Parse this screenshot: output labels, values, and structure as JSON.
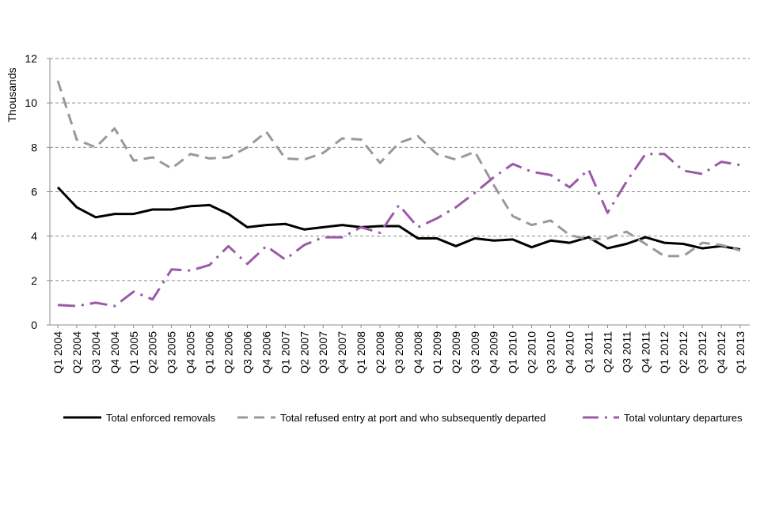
{
  "chart_data": {
    "type": "line",
    "ylabel": "Thousands",
    "xlabel": "",
    "ylim": [
      0,
      12
    ],
    "yticks": [
      0,
      2,
      4,
      6,
      8,
      10,
      12
    ],
    "grid": "horizontal dashed",
    "legend_position": "bottom",
    "categories": [
      "Q1 2004",
      "Q2 2004",
      "Q3 2004",
      "Q4 2004",
      "Q1 2005",
      "Q2 2005",
      "Q3 2005",
      "Q4 2005",
      "Q1 2006",
      "Q2 2006",
      "Q3 2006",
      "Q4 2006",
      "Q1 2007",
      "Q2 2007",
      "Q3 2007",
      "Q4 2007",
      "Q1 2008",
      "Q2 2008",
      "Q3 2008",
      "Q4 2008",
      "Q1 2009",
      "Q2 2009",
      "Q3 2009",
      "Q4 2009",
      "Q1 2010",
      "Q2 2010",
      "Q3 2010",
      "Q4 2010",
      "Q1 2011",
      "Q2 2011",
      "Q3 2011",
      "Q4 2011",
      "Q1 2012",
      "Q2 2012",
      "Q3 2012",
      "Q4 2012",
      "Q1 2013"
    ],
    "series": [
      {
        "name": "Total enforced removals",
        "color": "#000000",
        "style": "solid",
        "values": [
          6.2,
          5.3,
          4.85,
          5.0,
          5.0,
          5.2,
          5.2,
          5.35,
          5.4,
          5.0,
          4.4,
          4.5,
          4.55,
          4.3,
          4.4,
          4.5,
          4.4,
          4.45,
          4.45,
          3.9,
          3.9,
          3.55,
          3.9,
          3.8,
          3.85,
          3.5,
          3.8,
          3.7,
          3.95,
          3.45,
          3.65,
          3.95,
          3.7,
          3.65,
          3.45,
          3.55,
          3.4
        ]
      },
      {
        "name": "Total refused entry at port and who subsequently departed",
        "color": "#999999",
        "style": "dashed",
        "values": [
          11.0,
          8.35,
          8.0,
          8.85,
          7.4,
          7.55,
          7.05,
          7.7,
          7.5,
          7.55,
          8.0,
          8.7,
          7.5,
          7.45,
          7.75,
          8.4,
          8.35,
          7.3,
          8.2,
          8.5,
          7.7,
          7.45,
          7.8,
          6.3,
          4.9,
          4.5,
          4.7,
          4.05,
          3.85,
          3.9,
          4.2,
          3.65,
          3.1,
          3.1,
          3.7,
          3.6,
          3.35
        ]
      },
      {
        "name": "Total voluntary departures",
        "color": "#9b5aa8",
        "style": "dash-dot",
        "values": [
          0.9,
          0.85,
          1.0,
          0.85,
          1.5,
          1.15,
          2.5,
          2.45,
          2.7,
          3.55,
          2.75,
          3.55,
          2.95,
          3.6,
          3.95,
          3.95,
          4.4,
          4.15,
          5.4,
          4.4,
          4.8,
          5.3,
          5.95,
          6.65,
          7.25,
          6.9,
          6.75,
          6.2,
          7.0,
          5.05,
          6.45,
          7.7,
          7.7,
          6.95,
          6.8,
          7.35,
          7.2
        ]
      }
    ]
  }
}
